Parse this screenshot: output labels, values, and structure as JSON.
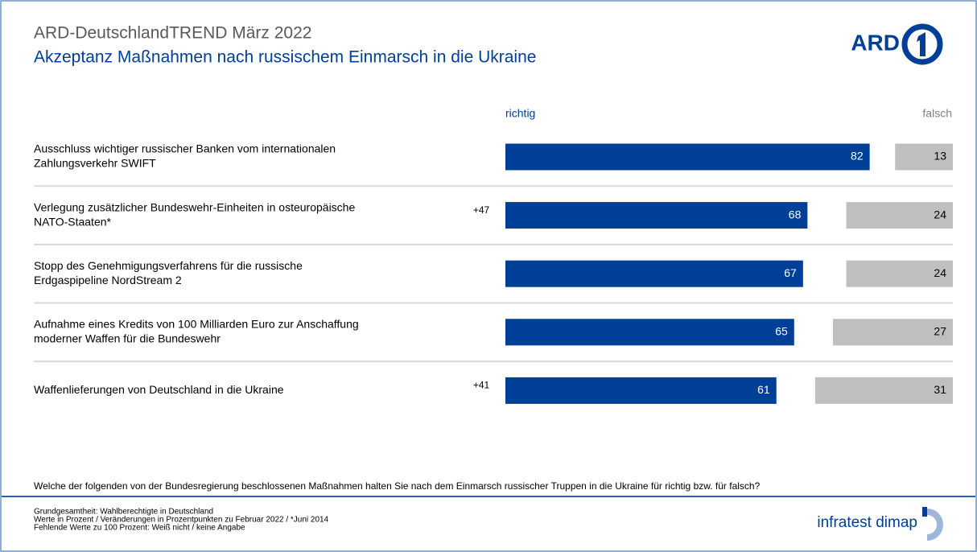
{
  "chart_data": {
    "type": "bar",
    "title": "ARD-DeutschlandTREND März 2022",
    "subtitle": "Akzeptanz Maßnahmen nach russischem Einmarsch in die Ukraine",
    "categories": [
      [
        "Ausschluss wichtiger russischer Banken vom internationalen",
        "Zahlungsverkehr SWIFT"
      ],
      [
        "Verlegung zusätzlicher Bundeswehr-Einheiten in osteuropäische",
        "NATO-Staaten*"
      ],
      [
        "Stopp des Genehmigungsverfahrens für die russische",
        "Erdgaspipeline NordStream 2"
      ],
      [
        "Aufnahme eines Kredits von 100 Milliarden Euro zur Anschaffung",
        "moderner Waffen für die Bundeswehr"
      ],
      [
        "Waffenlieferungen von Deutschland in die Ukraine"
      ]
    ],
    "changes": [
      null,
      "+47",
      null,
      null,
      "+41"
    ],
    "series": [
      {
        "name": "richtig",
        "color": "#003f98",
        "values": [
          82,
          68,
          67,
          65,
          61
        ]
      },
      {
        "name": "falsch",
        "color": "#bfbfbf",
        "values": [
          13,
          24,
          24,
          27,
          31
        ]
      }
    ]
  },
  "question": "Welche der folgenden von der Bundesregierung beschlossenen Maßnahmen halten Sie nach dem Einmarsch russischer Truppen in die Ukraine für richtig bzw. für falsch?",
  "footnotes": [
    "Grundgesamtheit: Wahlberechtigte in Deutschland",
    "Werte in Prozent / Veränderungen in Prozentpunkten zu Februar 2022 / *Juni 2014",
    "Fehlende Werte zu 100 Prozent: Weiß nicht / keine Angabe"
  ],
  "logo": "ARD",
  "footer_logo": "infratest dimap"
}
